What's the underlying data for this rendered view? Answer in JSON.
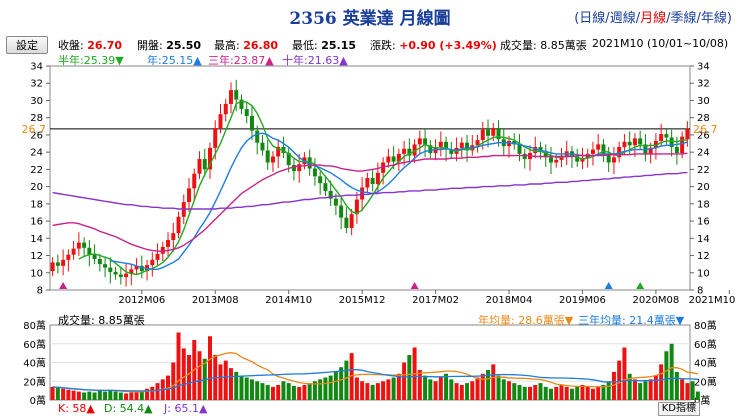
{
  "header": {
    "title": "2356 英業達 月線圖",
    "periods": [
      {
        "label": "日線",
        "selected": false
      },
      {
        "label": "週線",
        "selected": false
      },
      {
        "label": "月線",
        "selected": true
      },
      {
        "label": "季線",
        "selected": false
      },
      {
        "label": "年線",
        "selected": false
      }
    ],
    "settings_label": "設定"
  },
  "quote": {
    "close_label": "收盤:",
    "close": "26.70",
    "open_label": "開盤:",
    "open": "25.50",
    "high_label": "最高:",
    "high": "26.80",
    "low_label": "最低:",
    "low": "25.15",
    "change_label": "漲跌:",
    "change": "+0.90 (+3.49%)",
    "volume_label": "成交量:",
    "volume": "8.85萬張",
    "period": "2021M10 (10/01~10/08)"
  },
  "ma": {
    "half": "半年:25.39▼",
    "year": "年:25.15▲",
    "three": "三年:23.87▲",
    "ten": "十年:21.63▲"
  },
  "volume_info": {
    "label": "成交量: 8.85萬張",
    "year_avg": "年均量: 28.6萬張▼",
    "three_avg": "三年均量: 21.4萬張▼"
  },
  "kd": {
    "k": "K: 58▲",
    "d": "D: 54.4▲",
    "j": "J: 65.1▲",
    "button": "KD指標"
  },
  "colors": {
    "up": "#ee1111",
    "down": "#118811",
    "half_ma": "#22aa22",
    "year_ma": "#1e7de0",
    "three_ma": "#cc2288",
    "ten_ma": "#8833cc",
    "year_vol": "#e8891a",
    "three_vol": "#1e7de0"
  },
  "chart_data": [
    {
      "type": "candlestick",
      "x_start": "2011M01",
      "x_end": "2021M10",
      "x_ticks": [
        "2012M06",
        "2013M08",
        "2014M10",
        "2015M12",
        "2017M02",
        "2018M04",
        "2019M06",
        "2020M08",
        "2021M10"
      ],
      "y_ticks": [
        8,
        10,
        12,
        14,
        16,
        18,
        20,
        22,
        24,
        26,
        28,
        30,
        32,
        34
      ],
      "ylim": [
        8,
        34
      ],
      "reference_price": 26.7,
      "reference_label": "26.7",
      "close_series": [
        11.2,
        10.8,
        11.5,
        12.1,
        12.8,
        13.5,
        12.9,
        12.1,
        11.6,
        11.0,
        10.6,
        10.1,
        9.8,
        9.5,
        9.9,
        10.4,
        10.8,
        10.2,
        10.9,
        11.5,
        12.2,
        13.0,
        13.8,
        14.6,
        16.5,
        18.2,
        19.8,
        21.5,
        23.2,
        22.0,
        24.5,
        26.8,
        28.4,
        29.6,
        31.2,
        30.1,
        29.0,
        28.2,
        26.5,
        25.1,
        24.2,
        22.8,
        23.5,
        24.6,
        23.9,
        22.5,
        21.8,
        22.6,
        23.4,
        22.1,
        21.2,
        20.4,
        19.5,
        18.6,
        17.8,
        16.4,
        15.2,
        16.8,
        18.5,
        19.9,
        21.0,
        20.3,
        21.6,
        22.8,
        23.5,
        22.9,
        23.8,
        24.4,
        23.6,
        24.9,
        25.6,
        24.8,
        23.9,
        24.6,
        25.2,
        24.3,
        23.8,
        24.5,
        25.1,
        24.2,
        24.8,
        25.4,
        26.6,
        25.9,
        26.8,
        25.5,
        24.7,
        25.3,
        24.9,
        23.8,
        23.2,
        23.9,
        24.6,
        24.0,
        23.4,
        22.8,
        23.1,
        23.6,
        24.1,
        23.5,
        22.9,
        23.3,
        23.8,
        24.3,
        24.9,
        23.7,
        22.8,
        23.4,
        24.6,
        25.2,
        24.8,
        25.6,
        24.9,
        23.8,
        24.5,
        25.3,
        26.1,
        25.7,
        24.6,
        23.9,
        25.8,
        26.7
      ],
      "open_series": [
        10.2,
        11.2,
        10.8,
        11.5,
        12.1,
        12.8,
        13.5,
        12.9,
        12.1,
        11.6,
        11.0,
        10.6,
        10.1,
        9.8,
        9.5,
        9.9,
        10.4,
        10.8,
        10.2,
        10.9,
        11.5,
        12.2,
        13.0,
        13.8,
        14.6,
        16.5,
        18.2,
        19.8,
        21.5,
        23.2,
        22.0,
        24.5,
        26.8,
        28.4,
        29.6,
        31.2,
        30.1,
        29.0,
        28.2,
        26.5,
        25.1,
        24.2,
        22.8,
        23.5,
        24.6,
        23.9,
        22.5,
        21.8,
        22.6,
        23.4,
        22.1,
        21.2,
        20.4,
        19.5,
        18.6,
        17.8,
        16.4,
        15.2,
        16.8,
        18.5,
        19.9,
        21.0,
        20.3,
        21.6,
        22.8,
        23.5,
        22.9,
        23.8,
        24.4,
        23.6,
        24.9,
        25.6,
        24.8,
        23.9,
        24.6,
        25.2,
        24.3,
        23.8,
        24.5,
        25.1,
        24.2,
        24.8,
        25.4,
        26.6,
        25.9,
        26.8,
        25.5,
        24.7,
        25.3,
        24.9,
        23.8,
        23.2,
        23.9,
        24.6,
        24.0,
        23.4,
        22.8,
        23.1,
        23.6,
        24.1,
        23.5,
        22.9,
        23.3,
        23.8,
        24.3,
        24.9,
        23.7,
        22.8,
        23.4,
        24.6,
        25.2,
        24.8,
        25.6,
        24.9,
        23.8,
        24.5,
        25.3,
        26.1,
        25.7,
        24.6,
        23.9,
        25.5
      ],
      "series": [
        {
          "name": "半年",
          "values": [
            null,
            null,
            null,
            null,
            null,
            11.6,
            11.9,
            12.1,
            12.2,
            12.0,
            11.8,
            11.6,
            11.1,
            10.6,
            10.1,
            9.9,
            9.8,
            10.0,
            10.3,
            10.5,
            10.8,
            11.2,
            11.8,
            12.6,
            13.6,
            15.0,
            16.7,
            18.4,
            20.1,
            21.4,
            22.6,
            23.8,
            25.0,
            26.5,
            28.0,
            29.6,
            29.9,
            29.8,
            29.4,
            28.5,
            27.2,
            25.6,
            24.7,
            24.4,
            24.2,
            23.8,
            23.3,
            22.9,
            22.9,
            22.9,
            22.6,
            21.9,
            21.2,
            20.4,
            19.6,
            18.8,
            17.8,
            17.1,
            16.9,
            17.3,
            18.1,
            19.0,
            20.0,
            21.0,
            21.7,
            22.4,
            22.9,
            23.5,
            23.8,
            24.1,
            24.5,
            24.9,
            24.6,
            24.5,
            24.5,
            24.5,
            24.2,
            24.1,
            24.3,
            24.3,
            24.4,
            24.7,
            25.1,
            25.4,
            25.7,
            25.8,
            25.7,
            25.6,
            25.4,
            25.0,
            24.6,
            24.3,
            24.1,
            24.1,
            23.9,
            23.6,
            23.4,
            23.4,
            23.5,
            23.6,
            23.4,
            23.2,
            23.3,
            23.5,
            23.8,
            24.1,
            24.0,
            23.7,
            23.6,
            24.0,
            24.3,
            24.6,
            24.8,
            24.7,
            24.8,
            24.8,
            25.1,
            25.3,
            25.3,
            25.2,
            25.4,
            25.4
          ]
        },
        {
          "name": "年",
          "values": [
            null,
            null,
            null,
            null,
            null,
            null,
            null,
            null,
            null,
            null,
            null,
            11.4,
            11.3,
            11.2,
            11.1,
            11.0,
            10.8,
            10.6,
            10.5,
            10.4,
            10.4,
            10.6,
            10.9,
            11.2,
            11.6,
            12.4,
            13.2,
            14.1,
            15.1,
            16.0,
            17.0,
            18.2,
            19.5,
            20.8,
            22.2,
            23.4,
            24.5,
            25.3,
            25.8,
            26.1,
            26.2,
            26.0,
            25.6,
            25.4,
            25.0,
            24.6,
            24.0,
            23.4,
            22.9,
            22.6,
            22.4,
            22.2,
            21.9,
            21.6,
            21.2,
            20.8,
            20.3,
            19.9,
            19.6,
            19.4,
            19.3,
            19.2,
            19.4,
            19.8,
            20.3,
            20.9,
            21.6,
            22.2,
            22.7,
            23.3,
            23.8,
            24.1,
            24.2,
            24.3,
            24.3,
            24.4,
            24.3,
            24.2,
            24.4,
            24.5,
            24.5,
            24.6,
            24.8,
            24.9,
            25.0,
            25.1,
            25.1,
            25.1,
            25.0,
            24.9,
            24.7,
            24.6,
            24.4,
            24.2,
            24.1,
            23.9,
            23.8,
            23.8,
            23.8,
            23.8,
            23.7,
            23.6,
            23.6,
            23.6,
            23.7,
            23.8,
            23.8,
            23.8,
            23.9,
            24.1,
            24.2,
            24.3,
            24.3,
            24.3,
            24.4,
            24.5,
            24.7,
            24.8,
            24.8,
            24.9,
            25.0,
            25.15
          ]
        },
        {
          "name": "三年",
          "values": [
            15.5,
            15.6,
            15.7,
            15.8,
            15.8,
            15.7,
            15.5,
            15.3,
            15.1,
            14.8,
            14.6,
            14.4,
            14.2,
            13.9,
            13.6,
            13.3,
            13.1,
            12.9,
            12.7,
            12.6,
            12.5,
            12.5,
            12.6,
            12.7,
            12.9,
            13.2,
            13.6,
            14.0,
            14.5,
            15.0,
            15.6,
            16.2,
            16.8,
            17.4,
            18.0,
            18.6,
            19.2,
            19.6,
            20.0,
            20.4,
            20.8,
            21.1,
            21.4,
            21.7,
            21.9,
            22.1,
            22.3,
            22.4,
            22.4,
            22.5,
            22.5,
            22.5,
            22.4,
            22.4,
            22.3,
            22.1,
            22.0,
            21.9,
            21.8,
            21.8,
            21.9,
            22.0,
            22.1,
            22.3,
            22.4,
            22.5,
            22.7,
            22.8,
            22.9,
            23.0,
            23.1,
            23.2,
            23.2,
            23.2,
            23.2,
            23.2,
            23.3,
            23.3,
            23.3,
            23.4,
            23.4,
            23.4,
            23.5,
            23.5,
            23.6,
            23.6,
            23.6,
            23.6,
            23.6,
            23.6,
            23.6,
            23.6,
            23.5,
            23.5,
            23.5,
            23.5,
            23.5,
            23.5,
            23.5,
            23.5,
            23.6,
            23.6,
            23.6,
            23.6,
            23.6,
            23.6,
            23.7,
            23.7,
            23.7,
            23.7,
            23.7,
            23.8,
            23.8,
            23.8,
            23.8,
            23.8,
            23.8,
            23.8,
            23.8,
            23.8,
            23.8,
            23.87
          ]
        },
        {
          "name": "十年",
          "values": [
            19.3,
            19.2,
            19.1,
            19.0,
            18.9,
            18.8,
            18.7,
            18.6,
            18.5,
            18.4,
            18.3,
            18.2,
            18.1,
            18.0,
            17.9,
            17.9,
            17.8,
            17.7,
            17.7,
            17.6,
            17.6,
            17.5,
            17.5,
            17.5,
            17.4,
            17.4,
            17.4,
            17.4,
            17.4,
            17.4,
            17.4,
            17.4,
            17.5,
            17.5,
            17.5,
            17.6,
            17.6,
            17.7,
            17.7,
            17.8,
            17.9,
            17.9,
            18.0,
            18.1,
            18.2,
            18.2,
            18.3,
            18.4,
            18.5,
            18.5,
            18.6,
            18.7,
            18.7,
            18.8,
            18.9,
            18.9,
            19.0,
            19.0,
            19.0,
            19.1,
            19.1,
            19.2,
            19.2,
            19.3,
            19.3,
            19.3,
            19.4,
            19.4,
            19.5,
            19.5,
            19.5,
            19.6,
            19.6,
            19.6,
            19.7,
            19.7,
            19.8,
            19.8,
            19.8,
            19.9,
            19.9,
            19.9,
            20.0,
            20.0,
            20.0,
            20.1,
            20.1,
            20.1,
            20.2,
            20.2,
            20.2,
            20.3,
            20.3,
            20.3,
            20.4,
            20.4,
            20.5,
            20.5,
            20.5,
            20.6,
            20.6,
            20.7,
            20.7,
            20.8,
            20.8,
            20.9,
            20.9,
            21.0,
            21.0,
            21.1,
            21.1,
            21.2,
            21.2,
            21.3,
            21.3,
            21.4,
            21.4,
            21.5,
            21.5,
            21.5,
            21.6,
            21.63
          ]
        }
      ]
    },
    {
      "type": "bar",
      "y_ticks_labels": [
        "0萬",
        "20萬",
        "40萬",
        "60萬",
        "80萬"
      ],
      "ylim": [
        0,
        80
      ],
      "unit": "萬張",
      "values": [
        14,
        13,
        12,
        11,
        10,
        9,
        8,
        9,
        8,
        10,
        9,
        11,
        9,
        8,
        7,
        8,
        9,
        10,
        12,
        14,
        18,
        22,
        26,
        40,
        72,
        55,
        48,
        64,
        52,
        44,
        68,
        48,
        38,
        42,
        34,
        30,
        26,
        24,
        22,
        20,
        18,
        16,
        14,
        16,
        20,
        18,
        15,
        14,
        16,
        18,
        20,
        22,
        24,
        26,
        30,
        35,
        42,
        50,
        24,
        20,
        18,
        16,
        18,
        20,
        22,
        24,
        28,
        40,
        48,
        56,
        32,
        26,
        22,
        20,
        24,
        28,
        22,
        18,
        16,
        18,
        20,
        24,
        28,
        32,
        38,
        26,
        22,
        20,
        18,
        16,
        14,
        14,
        16,
        18,
        14,
        12,
        14,
        16,
        14,
        12,
        14,
        16,
        14,
        12,
        14,
        16,
        20,
        30,
        42,
        56,
        28,
        22,
        18,
        20,
        22,
        26,
        38,
        52,
        60,
        30,
        22,
        18,
        20,
        9
      ]
    }
  ]
}
